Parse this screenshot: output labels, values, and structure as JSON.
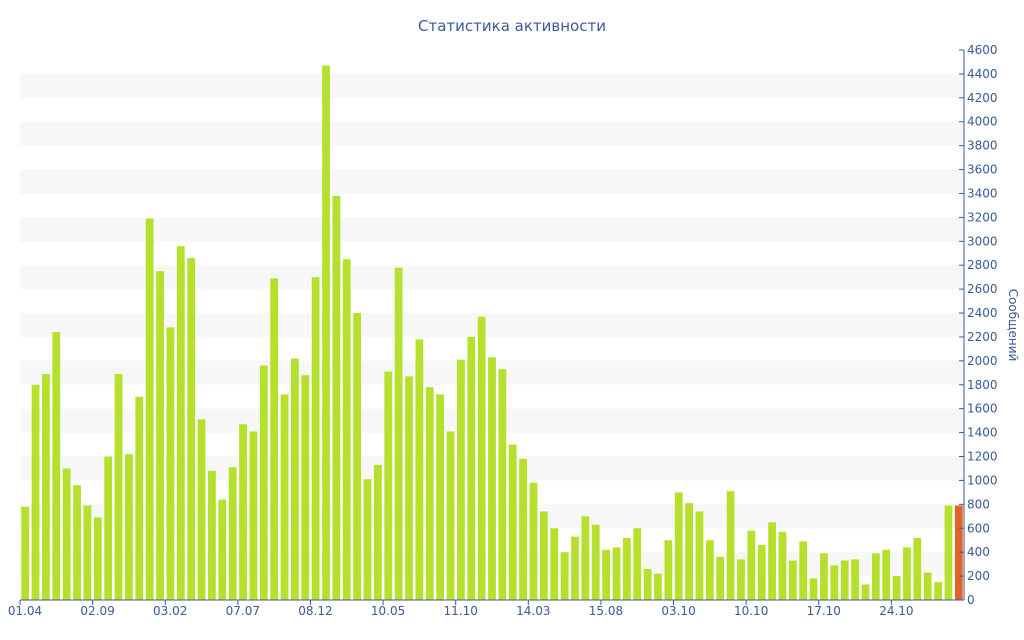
{
  "chart_data": {
    "type": "bar",
    "title": "Статистика активности",
    "ylabel": "Сообщений",
    "xlabel": "",
    "ylim": [
      0,
      4600
    ],
    "y_tick_step": 200,
    "grid": "alternating horizontal bands",
    "x_tick_labels": [
      "01.04",
      "02.09",
      "03.02",
      "07.07",
      "08.12",
      "10.05",
      "11.10",
      "14.03",
      "15.08",
      "03.10",
      "10.10",
      "17.10",
      "24.10"
    ],
    "colors": {
      "bar": "#b5e02c",
      "bar_highlight": "#e2622a",
      "text": "#3a5a98",
      "band": "#f7f7f7"
    },
    "values": [
      780,
      1800,
      1890,
      2240,
      1100,
      960,
      790,
      690,
      1200,
      1890,
      1220,
      1700,
      3190,
      2750,
      2280,
      2960,
      2860,
      1510,
      1080,
      840,
      1110,
      1470,
      1410,
      1960,
      2690,
      1720,
      2020,
      1880,
      2700,
      4470,
      3380,
      2850,
      2400,
      1010,
      1130,
      1910,
      2780,
      1870,
      2180,
      1780,
      1720,
      1410,
      2010,
      2200,
      2370,
      2030,
      1930,
      1300,
      1180,
      980,
      740,
      600,
      400,
      530,
      700,
      630,
      420,
      440,
      520,
      600,
      260,
      220,
      500,
      900,
      810,
      740,
      500,
      360,
      910,
      340,
      580,
      460,
      650,
      570,
      330,
      490,
      180,
      390,
      290,
      330,
      340,
      130,
      390,
      420,
      200,
      440,
      520,
      230,
      150,
      790,
      790
    ],
    "highlight_index": 90
  }
}
